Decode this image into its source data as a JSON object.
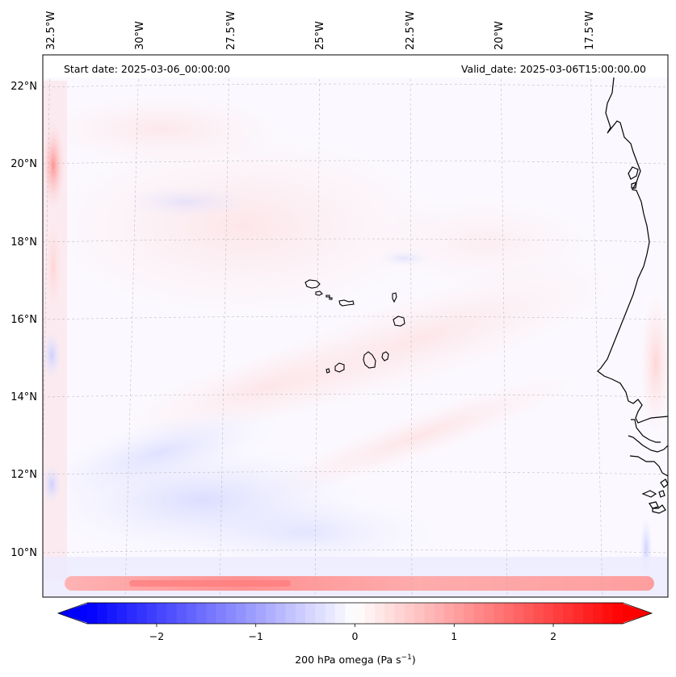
{
  "map": {
    "start_date_label": "Start date: 2025-03-06_00:00:00",
    "valid_date_label": "Valid_date: 2025-03-06T15:00:00.00",
    "lon_labels": [
      "32.5°W",
      "30°W",
      "27.5°W",
      "25°W",
      "22.5°W",
      "20°W",
      "17.5°W"
    ],
    "lat_labels": [
      "22°N",
      "20°N",
      "18°N",
      "16°N",
      "14°N",
      "12°N",
      "10°N"
    ],
    "features": [
      "Cape Verde islands",
      "West African coastline"
    ]
  },
  "colorbar": {
    "ticks": [
      "−2",
      "−1",
      "0",
      "1",
      "2"
    ],
    "tick_values": [
      -2,
      -1,
      0,
      1,
      2
    ],
    "range": [
      -2.7,
      2.7
    ],
    "label": "200 hPa omega (Pa s",
    "label_exp": "−1",
    "label_close": ")",
    "low_color": "#0000ff",
    "mid_color": "#ffffff",
    "high_color": "#ff0000"
  },
  "chart_data": {
    "type": "heatmap",
    "variable": "200 hPa omega",
    "units": "Pa s^-1",
    "x_ticks": [
      "32.5°W",
      "30°W",
      "27.5°W",
      "25°W",
      "22.5°W",
      "20°W",
      "17.5°W"
    ],
    "y_ticks": [
      "22°N",
      "20°N",
      "18°N",
      "16°N",
      "14°N",
      "12°N",
      "10°N"
    ],
    "colorbar_ticks": [
      -2,
      -1,
      0,
      1,
      2
    ],
    "value_range": [
      -2.7,
      2.7
    ],
    "colormap": "bwr"
  }
}
